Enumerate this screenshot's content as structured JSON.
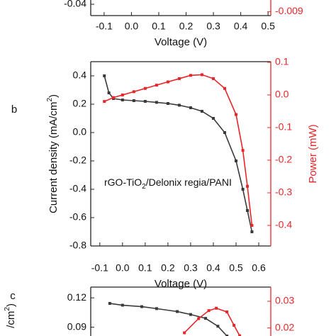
{
  "chart_data": [
    {
      "type": "line",
      "xlim": [
        -0.149,
        0.51
      ],
      "xticks": [
        -0.1,
        {
          "value": 0,
          "label": "0.0"
        },
        0.1,
        0.2,
        0.3,
        0.4,
        0.5
      ],
      "x_label": "Voltage (V)",
      "ylim": [
        -0.045,
        -0.03
      ],
      "yticks": [
        -0.04
      ],
      "y2lim": [
        -0.0092,
        -0.0075
      ],
      "y2ticks": [
        -0.009
      ],
      "y2_color": "#e8262a"
    },
    {
      "type": "line",
      "panel_label": "b",
      "xlim": [
        -0.14,
        0.653
      ],
      "xticks": [
        -0.1,
        {
          "value": 0,
          "label": "0.0"
        },
        0.1,
        0.2,
        0.3,
        0.4,
        0.5,
        0.6
      ],
      "x_label": "Voltage (V)",
      "ylim": [
        -0.8,
        0.5
      ],
      "yticks": [
        0.4,
        0.2,
        {
          "value": 0,
          "label": "0.0"
        },
        -0.2,
        -0.4,
        -0.6,
        -0.8
      ],
      "y_label": [
        "Current density (mA/cm",
        "2",
        ")"
      ],
      "y2lim": [
        -0.463,
        0.102
      ],
      "y2ticks": [
        0.1,
        {
          "value": 0,
          "label": "0.0"
        },
        -0.1,
        -0.2,
        -0.3,
        -0.4
      ],
      "y2_label": [
        "Power (mW)"
      ],
      "y2_color": "#e8262a",
      "annotation": [
        "rGO-TiO",
        "2",
        "/Delonix regia/PANI"
      ],
      "series": [
        {
          "name": "Current density",
          "color": "#3a3a3a",
          "x": [
            -0.08,
            -0.06,
            -0.04,
            0.0,
            0.05,
            0.1,
            0.15,
            0.2,
            0.25,
            0.3,
            0.35,
            0.4,
            0.45,
            0.5,
            0.53,
            0.55,
            0.57
          ],
          "values": [
            0.4,
            0.28,
            0.24,
            0.23,
            0.225,
            0.22,
            0.213,
            0.205,
            0.193,
            0.175,
            0.15,
            0.1,
            0.0,
            -0.2,
            -0.4,
            -0.55,
            -0.7
          ]
        },
        {
          "name": "Power",
          "color": "#e8262a",
          "axis": "y2",
          "x": [
            -0.08,
            -0.04,
            0.0,
            0.05,
            0.1,
            0.15,
            0.2,
            0.25,
            0.3,
            0.35,
            0.4,
            0.45,
            0.5,
            0.53,
            0.55,
            0.57
          ],
          "values": [
            -0.02,
            -0.008,
            0.0,
            0.01,
            0.02,
            0.03,
            0.04,
            0.05,
            0.06,
            0.062,
            0.05,
            0.02,
            -0.06,
            -0.17,
            -0.28,
            -0.4
          ]
        }
      ]
    },
    {
      "type": "line",
      "panel_label": "c",
      "xlim": [
        -0.14,
        0.653
      ],
      "ylim": [
        0.081,
        0.131
      ],
      "yticks": [
        0.12,
        0.09
      ],
      "y_label": [
        "/cm",
        "2",
        ")"
      ],
      "y2lim": [
        0.017,
        0.0353
      ],
      "y2ticks": [
        0.03,
        0.02
      ],
      "y2_color": "#e8262a",
      "series": [
        {
          "name": "Current density",
          "color": "#3a3a3a",
          "x": [
            -0.056,
            0.0,
            0.085,
            0.15,
            0.241,
            0.3,
            0.366,
            0.42,
            0.46
          ],
          "values": [
            0.1143,
            0.1125,
            0.111,
            0.109,
            0.106,
            0.103,
            0.099,
            0.091,
            0.081
          ]
        },
        {
          "name": "Power",
          "color": "#e8262a",
          "axis": "y2",
          "x": [
            0.2725,
            0.335,
            0.38,
            0.413,
            0.46,
            0.491,
            0.516
          ],
          "values": [
            0.0182,
            0.0235,
            0.0265,
            0.0274,
            0.026,
            0.021,
            0.0171
          ]
        }
      ]
    }
  ]
}
